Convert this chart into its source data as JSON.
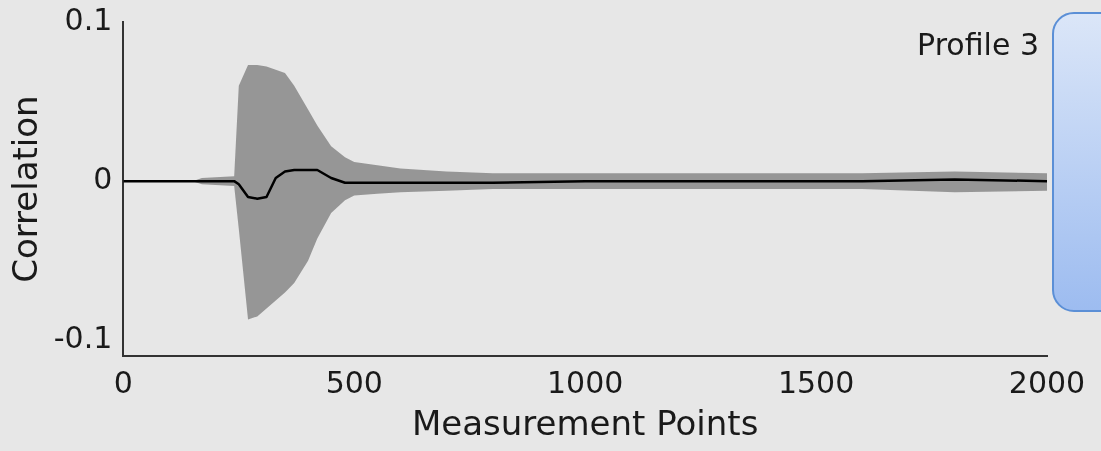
{
  "chart_data": {
    "type": "line",
    "xlabel": "Measurement Points",
    "ylabel": "Correlation",
    "annotations": [
      "Profile 3"
    ],
    "xlim": [
      0,
      2000
    ],
    "xticks": [
      0,
      500,
      1000,
      1500,
      2000
    ],
    "ylim": [
      -0.11,
      0.1
    ],
    "yticks": [
      -0.1,
      0,
      0.1
    ],
    "grid": false,
    "legend": false,
    "marker": "none",
    "line_style": "solid",
    "series": [
      {
        "color": "#000000",
        "x": [
          0,
          150,
          170,
          240,
          250,
          270,
          290,
          310,
          330,
          350,
          370,
          400,
          420,
          450,
          480,
          500,
          550,
          600,
          700,
          800,
          1000,
          1200,
          1400,
          1600,
          1800,
          2000
        ],
        "values": [
          0,
          0,
          0,
          0,
          -0.002,
          -0.01,
          -0.011,
          -0.01,
          0.002,
          0.006,
          0.007,
          0.007,
          0.007,
          0.002,
          -0.001,
          -0.001,
          -0.001,
          -0.001,
          -0.001,
          -0.001,
          0,
          0,
          0,
          0,
          0.001,
          0
        ],
        "lower": [
          0,
          0,
          -0.002,
          -0.003,
          -0.03,
          -0.087,
          -0.085,
          -0.08,
          -0.075,
          -0.07,
          -0.064,
          -0.05,
          -0.036,
          -0.02,
          -0.012,
          -0.009,
          -0.008,
          -0.007,
          -0.006,
          -0.005,
          -0.005,
          -0.005,
          -0.005,
          -0.005,
          -0.007,
          -0.006
        ],
        "upper": [
          0,
          0,
          0.002,
          0.003,
          0.06,
          0.073,
          0.073,
          0.072,
          0.07,
          0.068,
          0.06,
          0.045,
          0.035,
          0.022,
          0.015,
          0.012,
          0.01,
          0.008,
          0.006,
          0.005,
          0.005,
          0.005,
          0.005,
          0.005,
          0.006,
          0.005
        ]
      }
    ]
  }
}
